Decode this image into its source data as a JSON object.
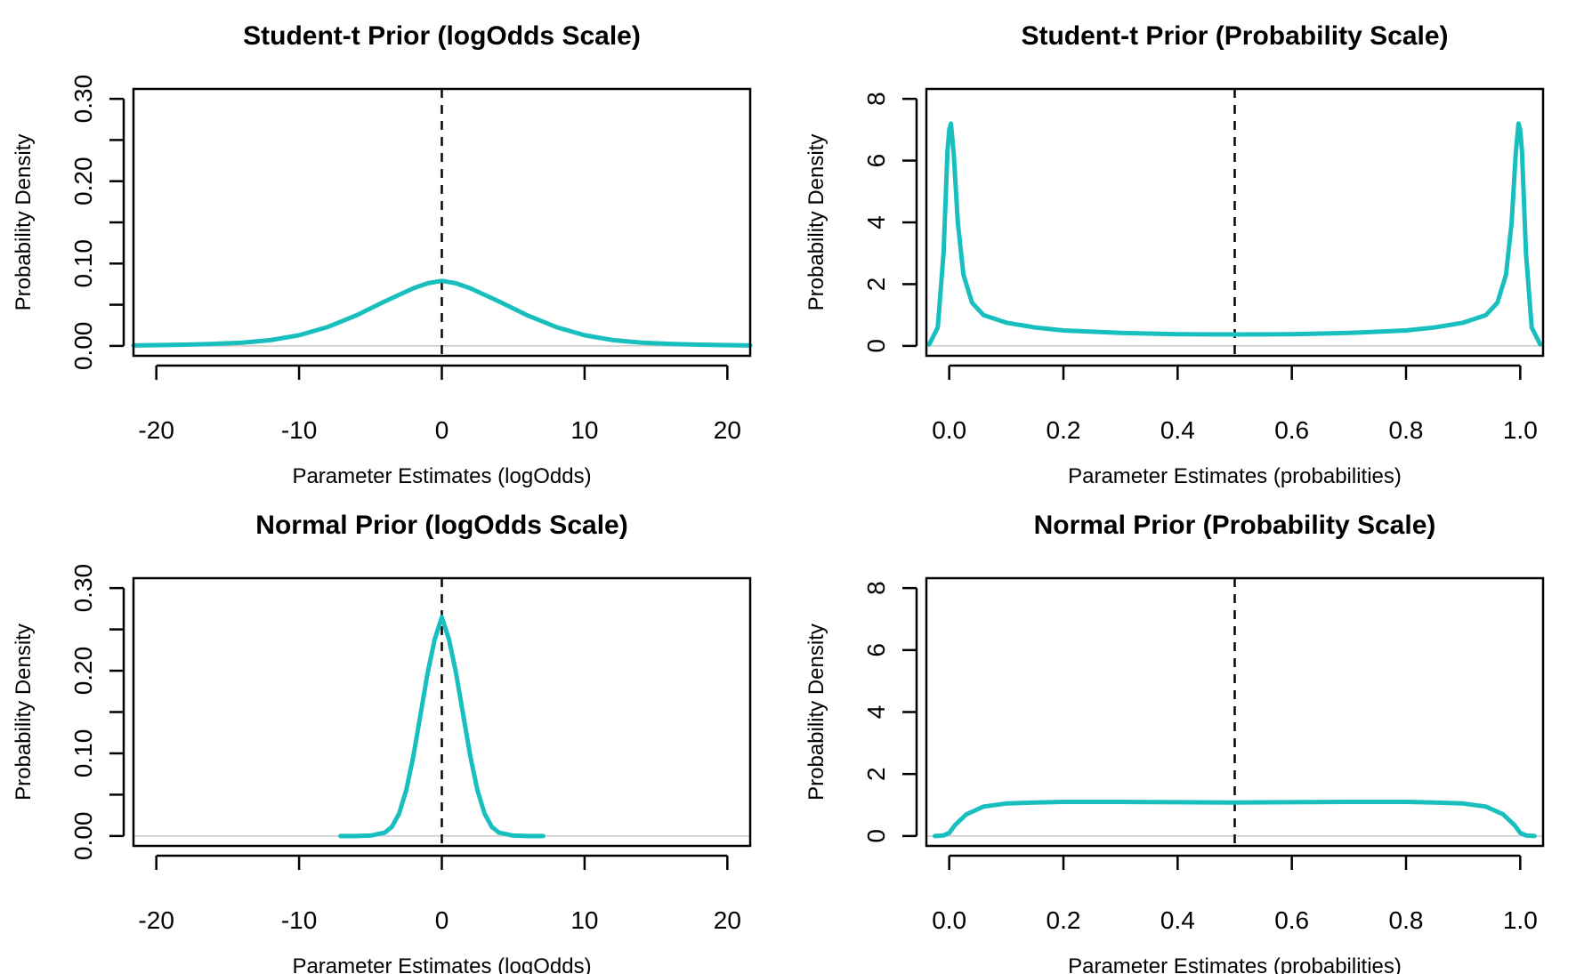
{
  "chart_data": [
    {
      "type": "line",
      "title": "Student-t Prior (logOdds Scale)",
      "xlabel": "Parameter Estimates (logOdds)",
      "ylabel": "Probability Density",
      "xlim": [
        -21.6,
        21.6
      ],
      "ylim": [
        -0.012,
        0.312
      ],
      "xticks": [
        -20,
        -10,
        0,
        10,
        20
      ],
      "xtick_labels": [
        "-20",
        "-10",
        "0",
        "10",
        "20"
      ],
      "yticks": [
        0,
        0.05,
        0.1,
        0.15,
        0.2,
        0.25,
        0.3
      ],
      "ytick_labels": [
        "0.00",
        "",
        "0.10",
        "",
        "0.20",
        "",
        "0.30"
      ],
      "reference_vline_x": 0,
      "reference_hline_y": 0,
      "grid": false,
      "series": [
        {
          "color": "#19BFBF",
          "x": [
            -21.6,
            -20,
            -18,
            -16,
            -14,
            -12,
            -10,
            -8,
            -6,
            -4,
            -2,
            -1,
            0,
            1,
            2,
            4,
            6,
            8,
            10,
            12,
            14,
            16,
            18,
            20,
            21.6
          ],
          "y": [
            0.0005,
            0.001,
            0.0015,
            0.0025,
            0.004,
            0.007,
            0.013,
            0.023,
            0.037,
            0.054,
            0.07,
            0.076,
            0.079,
            0.076,
            0.07,
            0.054,
            0.037,
            0.023,
            0.013,
            0.007,
            0.004,
            0.0025,
            0.0015,
            0.001,
            0.0005
          ]
        }
      ]
    },
    {
      "type": "line",
      "title": "Student-t Prior (Probability Scale)",
      "xlabel": "Parameter Estimates (probabilities)",
      "ylabel": "Probability Density",
      "xlim": [
        -0.04,
        1.04
      ],
      "ylim": [
        -0.32,
        8.32
      ],
      "xticks": [
        0,
        0.2,
        0.4,
        0.6,
        0.8,
        1.0
      ],
      "xtick_labels": [
        "0.0",
        "0.2",
        "0.4",
        "0.6",
        "0.8",
        "1.0"
      ],
      "yticks": [
        0,
        2,
        4,
        6,
        8
      ],
      "ytick_labels": [
        "0",
        "2",
        "4",
        "6",
        "8"
      ],
      "reference_vline_x": 0.5,
      "reference_hline_y": 0,
      "grid": false,
      "series": [
        {
          "color": "#19BFBF",
          "x": [
            -0.035,
            -0.02,
            -0.01,
            -0.003,
            0.0,
            0.003,
            0.008,
            0.015,
            0.025,
            0.04,
            0.06,
            0.1,
            0.15,
            0.2,
            0.3,
            0.4,
            0.5,
            0.6,
            0.7,
            0.8,
            0.85,
            0.9,
            0.94,
            0.96,
            0.975,
            0.985,
            0.992,
            0.997,
            1.0,
            1.003,
            1.01,
            1.02,
            1.035
          ],
          "y": [
            0.05,
            0.6,
            3.0,
            6.3,
            7.0,
            7.2,
            6.2,
            4.0,
            2.3,
            1.4,
            1.0,
            0.75,
            0.6,
            0.5,
            0.42,
            0.38,
            0.37,
            0.38,
            0.42,
            0.5,
            0.6,
            0.75,
            1.0,
            1.4,
            2.3,
            4.0,
            6.2,
            7.2,
            7.0,
            6.3,
            3.0,
            0.6,
            0.05
          ]
        }
      ]
    },
    {
      "type": "line",
      "title": "Normal Prior (logOdds Scale)",
      "xlabel": "Parameter Estimates (logOdds)",
      "ylabel": "Probability Density",
      "xlim": [
        -21.6,
        21.6
      ],
      "ylim": [
        -0.012,
        0.312
      ],
      "xticks": [
        -20,
        -10,
        0,
        10,
        20
      ],
      "xtick_labels": [
        "-20",
        "-10",
        "0",
        "10",
        "20"
      ],
      "yticks": [
        0,
        0.05,
        0.1,
        0.15,
        0.2,
        0.25,
        0.3
      ],
      "ytick_labels": [
        "0.00",
        "",
        "0.10",
        "",
        "0.20",
        "",
        "0.30"
      ],
      "reference_vline_x": 0,
      "reference_hline_y": 0,
      "grid": false,
      "series": [
        {
          "color": "#19BFBF",
          "x": [
            -7.1,
            -6,
            -5,
            -4,
            -3.5,
            -3,
            -2.5,
            -2,
            -1.5,
            -1,
            -0.5,
            0,
            0.5,
            1,
            1.5,
            2,
            2.5,
            3,
            3.5,
            4,
            5,
            6,
            7.1
          ],
          "y": [
            0.0,
            0.0,
            0.0005,
            0.004,
            0.011,
            0.027,
            0.055,
            0.096,
            0.146,
            0.197,
            0.238,
            0.265,
            0.238,
            0.197,
            0.146,
            0.096,
            0.055,
            0.027,
            0.011,
            0.004,
            0.0005,
            0.0,
            0.0
          ]
        }
      ]
    },
    {
      "type": "line",
      "title": "Normal Prior (Probability Scale)",
      "xlabel": "Parameter Estimates (probabilities)",
      "ylabel": "Probability Density",
      "xlim": [
        -0.04,
        1.04
      ],
      "ylim": [
        -0.32,
        8.32
      ],
      "xticks": [
        0,
        0.2,
        0.4,
        0.6,
        0.8,
        1.0
      ],
      "xtick_labels": [
        "0.0",
        "0.2",
        "0.4",
        "0.6",
        "0.8",
        "1.0"
      ],
      "yticks": [
        0,
        2,
        4,
        6,
        8
      ],
      "ytick_labels": [
        "0",
        "2",
        "4",
        "6",
        "8"
      ],
      "reference_vline_x": 0.5,
      "reference_hline_y": 0,
      "grid": false,
      "series": [
        {
          "color": "#19BFBF",
          "x": [
            -0.025,
            -0.01,
            0.0,
            0.01,
            0.03,
            0.06,
            0.1,
            0.15,
            0.2,
            0.3,
            0.4,
            0.5,
            0.6,
            0.7,
            0.8,
            0.85,
            0.9,
            0.94,
            0.97,
            0.99,
            1.0,
            1.01,
            1.025
          ],
          "y": [
            0.0,
            0.02,
            0.1,
            0.35,
            0.7,
            0.95,
            1.05,
            1.08,
            1.1,
            1.1,
            1.09,
            1.08,
            1.09,
            1.1,
            1.1,
            1.08,
            1.05,
            0.95,
            0.7,
            0.35,
            0.1,
            0.02,
            0.0
          ]
        }
      ]
    }
  ]
}
